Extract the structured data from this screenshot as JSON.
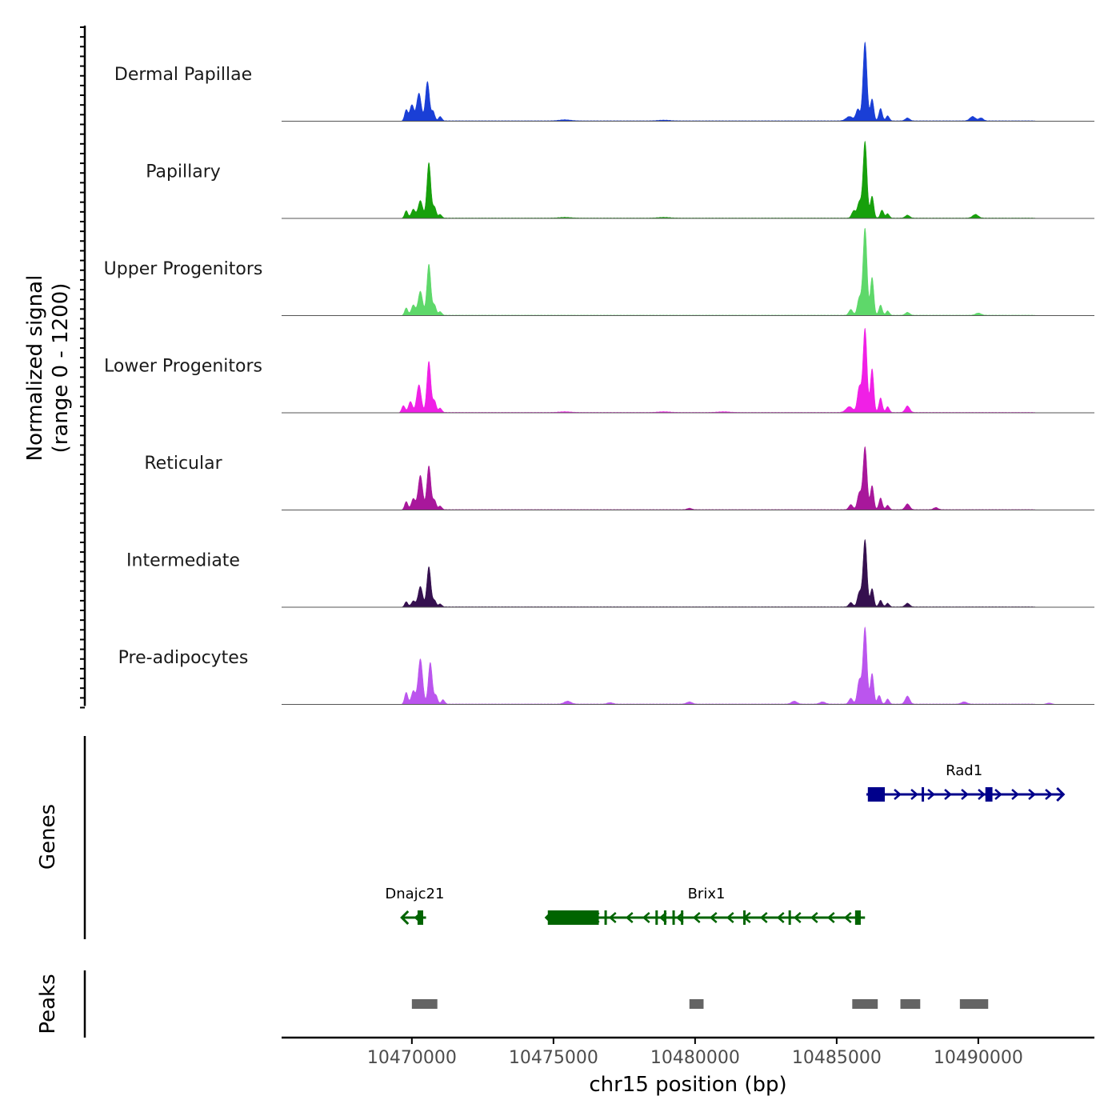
{
  "chart_data": {
    "type": "area",
    "description_genome": "chr15",
    "ylabel_line1": "Normalized signal",
    "ylabel_line2": "(range 0 - 1200)",
    "y_range": [
      0,
      1200
    ],
    "xlabel": "chr15 position (bp)",
    "xlim": [
      10465400,
      10494100
    ],
    "x_ticks": [
      10470000,
      10475000,
      10480000,
      10485000,
      10490000
    ],
    "x_tick_labels": [
      "10470000",
      "10475000",
      "10480000",
      "10485000",
      "10490000"
    ],
    "tracks": [
      {
        "name": "Dermal Papillae",
        "color": "#1a3fd6",
        "peaks": [
          [
            10469800,
            150,
            60
          ],
          [
            10470000,
            220,
            70
          ],
          [
            10470250,
            380,
            80
          ],
          [
            10470550,
            540,
            70
          ],
          [
            10470750,
            130,
            60
          ],
          [
            10471000,
            60,
            60
          ],
          [
            10485450,
            60,
            120
          ],
          [
            10485750,
            160,
            70
          ],
          [
            10486000,
            1080,
            70
          ],
          [
            10486250,
            300,
            60
          ],
          [
            10486550,
            170,
            60
          ],
          [
            10486800,
            70,
            60
          ],
          [
            10487500,
            40,
            80
          ],
          [
            10489800,
            60,
            100
          ],
          [
            10490100,
            40,
            80
          ],
          [
            10475400,
            15,
            200
          ],
          [
            10478900,
            10,
            200
          ]
        ]
      },
      {
        "name": "Papillary",
        "color": "#17a00c",
        "peaks": [
          [
            10469800,
            100,
            60
          ],
          [
            10470050,
            120,
            70
          ],
          [
            10470300,
            240,
            80
          ],
          [
            10470600,
            760,
            70
          ],
          [
            10470800,
            150,
            60
          ],
          [
            10471000,
            50,
            60
          ],
          [
            10485600,
            100,
            70
          ],
          [
            10485800,
            220,
            70
          ],
          [
            10486000,
            1050,
            70
          ],
          [
            10486250,
            300,
            60
          ],
          [
            10486600,
            110,
            60
          ],
          [
            10486800,
            60,
            60
          ],
          [
            10487500,
            40,
            80
          ],
          [
            10489900,
            50,
            100
          ],
          [
            10475400,
            10,
            200
          ],
          [
            10478900,
            10,
            200
          ]
        ]
      },
      {
        "name": "Upper Progenitors",
        "color": "#5ed86a",
        "peaks": [
          [
            10469800,
            100,
            60
          ],
          [
            10470050,
            140,
            70
          ],
          [
            10470300,
            330,
            80
          ],
          [
            10470600,
            700,
            70
          ],
          [
            10470800,
            140,
            60
          ],
          [
            10471000,
            50,
            60
          ],
          [
            10485500,
            80,
            70
          ],
          [
            10485800,
            240,
            70
          ],
          [
            10486000,
            1200,
            70
          ],
          [
            10486250,
            520,
            60
          ],
          [
            10486550,
            140,
            60
          ],
          [
            10486800,
            60,
            60
          ],
          [
            10487500,
            40,
            80
          ],
          [
            10490000,
            30,
            100
          ]
        ]
      },
      {
        "name": "Lower Progenitors",
        "color": "#f020e6",
        "peaks": [
          [
            10469700,
            100,
            60
          ],
          [
            10469950,
            150,
            70
          ],
          [
            10470250,
            380,
            80
          ],
          [
            10470600,
            700,
            70
          ],
          [
            10470800,
            160,
            60
          ],
          [
            10471000,
            60,
            60
          ],
          [
            10485450,
            80,
            120
          ],
          [
            10485800,
            350,
            70
          ],
          [
            10486000,
            1150,
            70
          ],
          [
            10486250,
            600,
            60
          ],
          [
            10486550,
            200,
            60
          ],
          [
            10486800,
            80,
            60
          ],
          [
            10487500,
            90,
            80
          ],
          [
            10475400,
            10,
            200
          ],
          [
            10478900,
            10,
            200
          ],
          [
            10481000,
            10,
            200
          ]
        ]
      },
      {
        "name": "Reticular",
        "color": "#a8179b",
        "peaks": [
          [
            10469800,
            110,
            60
          ],
          [
            10470050,
            150,
            70
          ],
          [
            10470300,
            470,
            80
          ],
          [
            10470600,
            600,
            70
          ],
          [
            10470800,
            130,
            60
          ],
          [
            10471000,
            50,
            60
          ],
          [
            10485500,
            70,
            70
          ],
          [
            10485800,
            230,
            70
          ],
          [
            10486000,
            860,
            70
          ],
          [
            10486250,
            330,
            60
          ],
          [
            10486550,
            160,
            60
          ],
          [
            10486800,
            60,
            60
          ],
          [
            10487500,
            80,
            80
          ],
          [
            10488500,
            30,
            80
          ],
          [
            10479800,
            20,
            80
          ]
        ]
      },
      {
        "name": "Intermediate",
        "color": "#35104f",
        "peaks": [
          [
            10469800,
            70,
            60
          ],
          [
            10470050,
            80,
            70
          ],
          [
            10470300,
            280,
            80
          ],
          [
            10470600,
            550,
            70
          ],
          [
            10470800,
            90,
            60
          ],
          [
            10471000,
            40,
            60
          ],
          [
            10485500,
            60,
            70
          ],
          [
            10485800,
            200,
            70
          ],
          [
            10486000,
            920,
            70
          ],
          [
            10486250,
            250,
            60
          ],
          [
            10486550,
            90,
            60
          ],
          [
            10486800,
            50,
            60
          ],
          [
            10487500,
            50,
            80
          ]
        ]
      },
      {
        "name": "Pre-adipocytes",
        "color": "#bb55ee",
        "peaks": [
          [
            10469800,
            160,
            60
          ],
          [
            10470050,
            180,
            70
          ],
          [
            10470300,
            620,
            80
          ],
          [
            10470650,
            570,
            70
          ],
          [
            10470850,
            120,
            60
          ],
          [
            10471100,
            60,
            60
          ],
          [
            10475500,
            40,
            120
          ],
          [
            10477000,
            20,
            100
          ],
          [
            10479800,
            30,
            100
          ],
          [
            10483500,
            40,
            100
          ],
          [
            10484500,
            30,
            100
          ],
          [
            10485500,
            80,
            70
          ],
          [
            10485800,
            330,
            70
          ],
          [
            10486000,
            1050,
            70
          ],
          [
            10486250,
            420,
            60
          ],
          [
            10486500,
            120,
            60
          ],
          [
            10486800,
            70,
            60
          ],
          [
            10487500,
            110,
            80
          ],
          [
            10489500,
            30,
            100
          ],
          [
            10492500,
            20,
            100
          ]
        ]
      }
    ],
    "genes_label": "Genes",
    "genes": [
      {
        "name": "Rad1",
        "strand": "+",
        "color": "#00008b",
        "row": 1,
        "start": 10486050,
        "end": 10492950,
        "exons": [
          [
            10486100,
            10486700
          ],
          [
            10488000,
            10488080
          ],
          [
            10490250,
            10490500
          ]
        ]
      },
      {
        "name": "Dnajc21",
        "strand": "-",
        "color": "#006400",
        "row": 2,
        "start": 10469700,
        "end": 10470500,
        "exons": [
          [
            10470200,
            10470400
          ]
        ]
      },
      {
        "name": "Brix1",
        "strand": "-",
        "color": "#006400",
        "row": 2,
        "start": 10474800,
        "end": 10486000,
        "exons": [
          [
            10474800,
            10476600
          ],
          [
            10476800,
            10476850
          ],
          [
            10478600,
            10478650
          ],
          [
            10478900,
            10478950
          ],
          [
            10479200,
            10479260
          ],
          [
            10479500,
            10479550
          ],
          [
            10481700,
            10481750
          ],
          [
            10483300,
            10483380
          ],
          [
            10485650,
            10485850
          ]
        ]
      }
    ],
    "peaks_label": "Peaks",
    "peak_regions": [
      [
        10470000,
        10470900
      ],
      [
        10479800,
        10480300
      ],
      [
        10485550,
        10486450
      ],
      [
        10487250,
        10487950
      ],
      [
        10489350,
        10490350
      ]
    ]
  }
}
